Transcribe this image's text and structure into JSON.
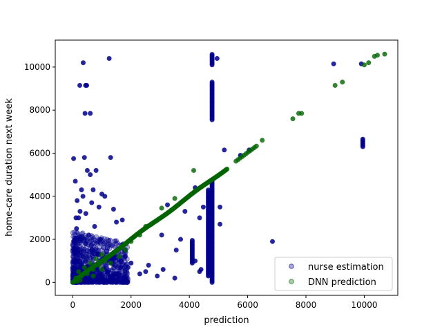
{
  "chart_data": {
    "type": "scatter",
    "title": "",
    "xlabel": "prediction",
    "ylabel": "home-care duration next week",
    "xlim": [
      -600,
      11150
    ],
    "ylim": [
      -600,
      11250
    ],
    "xticks": [
      0,
      2000,
      4000,
      6000,
      8000,
      10000
    ],
    "yticks": [
      0,
      2000,
      4000,
      6000,
      8000,
      10000
    ],
    "grid": false,
    "legend": {
      "placement": "lower-right"
    },
    "series": [
      {
        "name": "nurse estimation",
        "color": "#00008b",
        "alpha": 0.35,
        "points": [
          [
            30,
            5750
          ],
          [
            60,
            1600
          ],
          [
            110,
            3000
          ],
          [
            130,
            2500
          ],
          [
            90,
            4700
          ],
          [
            150,
            3800
          ],
          [
            200,
            3000
          ],
          [
            250,
            3300
          ],
          [
            300,
            4300
          ],
          [
            350,
            4000
          ],
          [
            400,
            5800
          ],
          [
            450,
            3200
          ],
          [
            500,
            5200
          ],
          [
            600,
            5000
          ],
          [
            650,
            3700
          ],
          [
            700,
            4300
          ],
          [
            800,
            5200
          ],
          [
            900,
            3500
          ],
          [
            1000,
            4100
          ],
          [
            1100,
            4000
          ],
          [
            1300,
            5800
          ],
          [
            1400,
            3400
          ],
          [
            1500,
            2800
          ],
          [
            1700,
            2900
          ],
          [
            1800,
            1200
          ],
          [
            1900,
            700
          ],
          [
            2000,
            900
          ],
          [
            2300,
            400
          ],
          [
            2500,
            500
          ],
          [
            2900,
            300
          ],
          [
            3500,
            200
          ],
          [
            2600,
            800
          ],
          [
            3100,
            600
          ],
          [
            240,
            9150
          ],
          [
            360,
            10200
          ],
          [
            440,
            9150
          ],
          [
            480,
            9150
          ],
          [
            420,
            7850
          ],
          [
            600,
            7850
          ],
          [
            1250,
            10400
          ],
          [
            150,
            1000
          ],
          [
            300,
            800
          ],
          [
            500,
            600
          ],
          [
            700,
            400
          ],
          [
            900,
            300
          ],
          [
            1200,
            500
          ],
          [
            1500,
            400
          ],
          [
            250,
            2000
          ],
          [
            450,
            1800
          ],
          [
            650,
            1500
          ],
          [
            850,
            1300
          ],
          [
            1050,
            1100
          ],
          [
            1350,
            900
          ],
          [
            1650,
            700
          ],
          [
            200,
            300
          ],
          [
            400,
            200
          ],
          [
            600,
            100
          ],
          [
            800,
            150
          ],
          [
            1000,
            250
          ],
          [
            1300,
            200
          ],
          [
            100,
            100
          ],
          [
            50,
            50
          ],
          [
            350,
            1200
          ],
          [
            550,
            2200
          ],
          [
            750,
            2600
          ],
          [
            950,
            2000
          ]
        ],
        "vertical_lines": [
          {
            "x": 4780,
            "y_from": 0,
            "y_to": 4700
          },
          {
            "x": 4780,
            "y_from": 7550,
            "y_to": 9300
          },
          {
            "x": 4780,
            "y_from": 10100,
            "y_to": 10600
          },
          {
            "x": 4100,
            "y_from": 900,
            "y_to": 2000
          },
          {
            "x": 4650,
            "y_from": 300,
            "y_to": 4300
          },
          {
            "x": 9950,
            "y_from": 6300,
            "y_to": 6650
          }
        ],
        "extra_points": [
          [
            4950,
            10400
          ],
          [
            5200,
            6150
          ],
          [
            5050,
            3500
          ],
          [
            5050,
            2700
          ],
          [
            4480,
            3500
          ],
          [
            4350,
            3000
          ],
          [
            4200,
            1000
          ],
          [
            4350,
            500
          ],
          [
            4400,
            600
          ],
          [
            3050,
            2200
          ],
          [
            3550,
            1500
          ],
          [
            3700,
            2000
          ],
          [
            3850,
            3300
          ],
          [
            3250,
            3600
          ],
          [
            4200,
            4400
          ],
          [
            5750,
            5900
          ],
          [
            6050,
            6150
          ],
          [
            6850,
            1900
          ],
          [
            8950,
            10150
          ],
          [
            9900,
            10150
          ]
        ]
      },
      {
        "name": "DNN prediction",
        "color": "#006400",
        "alpha": 0.35,
        "diagonal": {
          "from": 0,
          "to": 10650
        },
        "points": [
          [
            4150,
            5200
          ],
          [
            3050,
            3450
          ],
          [
            6500,
            6600
          ],
          [
            7550,
            7600
          ],
          [
            7750,
            7850
          ],
          [
            7850,
            7850
          ],
          [
            9000,
            9150
          ],
          [
            9250,
            9300
          ],
          [
            10350,
            10500
          ],
          [
            10450,
            10550
          ],
          [
            10700,
            10600
          ],
          [
            10000,
            10100
          ],
          [
            10150,
            10200
          ],
          [
            200,
            500
          ],
          [
            400,
            700
          ],
          [
            600,
            900
          ],
          [
            800,
            1100
          ],
          [
            1000,
            1300
          ],
          [
            300,
            300
          ],
          [
            500,
            400
          ],
          [
            700,
            600
          ],
          [
            900,
            800
          ],
          [
            1100,
            1000
          ],
          [
            100,
            200
          ],
          [
            250,
            100
          ],
          [
            150,
            50
          ],
          [
            700,
            300
          ],
          [
            1000,
            600
          ],
          [
            1300,
            900
          ],
          [
            1600,
            1200
          ],
          [
            1800,
            1500
          ],
          [
            2000,
            1900
          ],
          [
            2300,
            2200
          ],
          [
            2500,
            2600
          ],
          [
            2700,
            2700
          ],
          [
            3500,
            3900
          ]
        ]
      }
    ]
  }
}
